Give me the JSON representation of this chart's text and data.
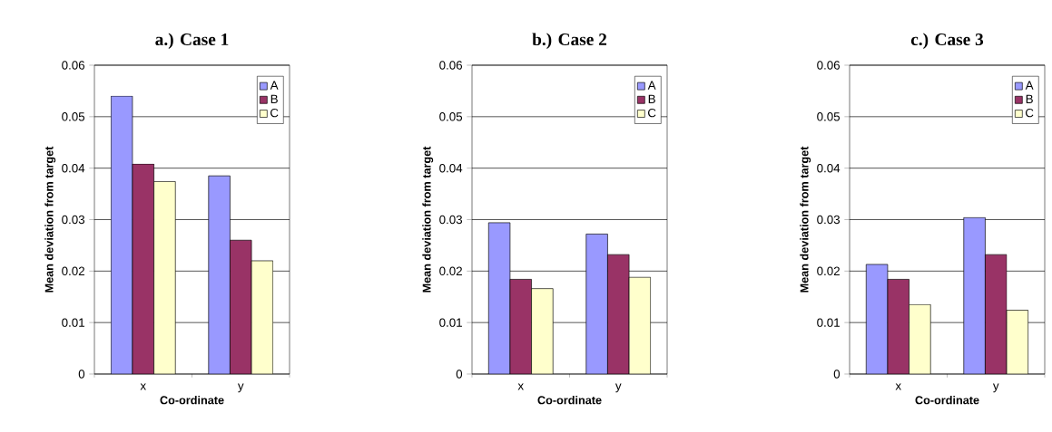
{
  "chart_data": [
    {
      "type": "bar",
      "title": "a.) Case 1",
      "xlabel": "Co-ordinate",
      "ylabel": "Mean deviation from target",
      "categories": [
        "x",
        "y"
      ],
      "series": [
        {
          "name": "A",
          "color": "#9999ff",
          "values": [
            0.054,
            0.0385
          ]
        },
        {
          "name": "B",
          "color": "#993366",
          "values": [
            0.0408,
            0.026
          ]
        },
        {
          "name": "C",
          "color": "#ffffcc",
          "values": [
            0.0374,
            0.022
          ]
        }
      ],
      "ylim": [
        0,
        0.06
      ],
      "yticks": [
        0,
        0.01,
        0.02,
        0.03,
        0.04,
        0.05,
        0.06
      ],
      "grid": "y",
      "legend": "top right"
    },
    {
      "type": "bar",
      "title": "b.) Case 2",
      "xlabel": "Co-ordinate",
      "ylabel": "Mean deviation from target",
      "categories": [
        "x",
        "y"
      ],
      "series": [
        {
          "name": "A",
          "color": "#9999ff",
          "values": [
            0.0294,
            0.0272
          ]
        },
        {
          "name": "B",
          "color": "#993366",
          "values": [
            0.0184,
            0.0232
          ]
        },
        {
          "name": "C",
          "color": "#ffffcc",
          "values": [
            0.0166,
            0.0188
          ]
        }
      ],
      "ylim": [
        0,
        0.06
      ],
      "yticks": [
        0,
        0.01,
        0.02,
        0.03,
        0.04,
        0.05,
        0.06
      ],
      "grid": "y",
      "legend": "top right"
    },
    {
      "type": "bar",
      "title": "c.) Case 3",
      "xlabel": "Co-ordinate",
      "ylabel": "Mean deviation from target",
      "categories": [
        "x",
        "y"
      ],
      "series": [
        {
          "name": "A",
          "color": "#9999ff",
          "values": [
            0.0213,
            0.0304
          ]
        },
        {
          "name": "B",
          "color": "#993366",
          "values": [
            0.0184,
            0.0232
          ]
        },
        {
          "name": "C",
          "color": "#ffffcc",
          "values": [
            0.0135,
            0.0124
          ]
        }
      ],
      "ylim": [
        0,
        0.06
      ],
      "yticks": [
        0,
        0.01,
        0.02,
        0.03,
        0.04,
        0.05,
        0.06
      ],
      "grid": "y",
      "legend": "top right"
    }
  ]
}
